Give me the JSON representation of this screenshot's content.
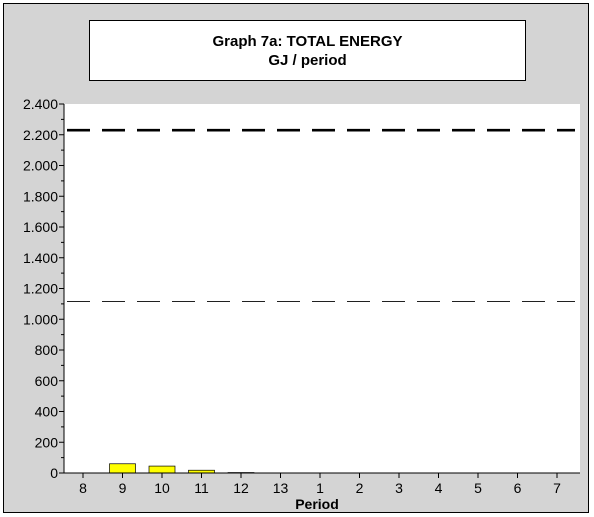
{
  "chart_data": {
    "type": "bar",
    "title": "Graph 7a: TOTAL ENERGY",
    "subtitle": "GJ / period",
    "xlabel": "Period",
    "ylabel": "",
    "categories": [
      "8",
      "9",
      "10",
      "11",
      "12",
      "13",
      "1",
      "2",
      "3",
      "4",
      "5",
      "6",
      "7"
    ],
    "series": [
      {
        "values": [
          0,
          60,
          45,
          18,
          3,
          0,
          0,
          0,
          0,
          0,
          0,
          0,
          0
        ],
        "color": "#ffff00"
      }
    ],
    "reference_lines": [
      {
        "value": 2230,
        "style": "dashed-thick"
      },
      {
        "value": 1115,
        "style": "dashed-thin"
      }
    ],
    "y_ticks": [
      {
        "value": 0,
        "label": "0"
      },
      {
        "value": 200,
        "label": "200"
      },
      {
        "value": 400,
        "label": "400"
      },
      {
        "value": 600,
        "label": "600"
      },
      {
        "value": 800,
        "label": "800"
      },
      {
        "value": 1000,
        "label": "1.000"
      },
      {
        "value": 1200,
        "label": "1.200"
      },
      {
        "value": 1400,
        "label": "1.400"
      },
      {
        "value": 1600,
        "label": "1.600"
      },
      {
        "value": 1800,
        "label": "1.800"
      },
      {
        "value": 2000,
        "label": "2.000"
      },
      {
        "value": 2200,
        "label": "2.200"
      },
      {
        "value": 2400,
        "label": "2.400"
      }
    ],
    "ylim": [
      0,
      2400
    ],
    "grid": false,
    "colors": {
      "frame_background": "#d4d4d4",
      "plot_background": "#ffffff",
      "bar": "#ffff00",
      "bar_outline": "#000000"
    }
  }
}
